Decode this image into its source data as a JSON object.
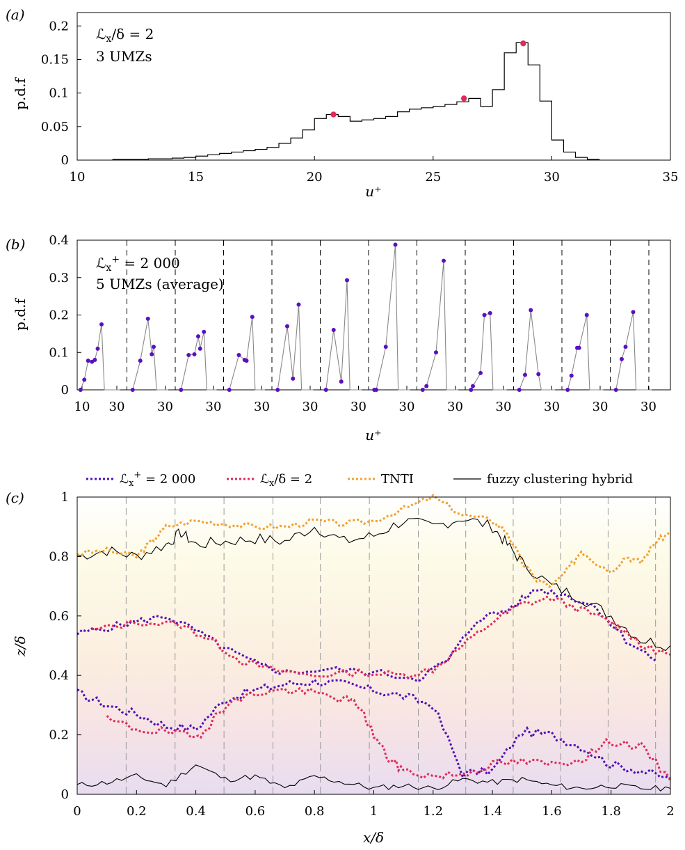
{
  "chart_data": [
    {
      "panel": "(a)",
      "type": "line",
      "xlabel": "u+",
      "ylabel": "p.d.f",
      "xlim": [
        10,
        35
      ],
      "ylim": [
        0,
        0.22
      ],
      "xticks": [
        "10",
        "15",
        "20",
        "25",
        "30",
        "35"
      ],
      "yticks": [
        "0",
        "0.05",
        "0.1",
        "0.15",
        "0.2"
      ],
      "annotations": [
        "L_x/δ = 2",
        "3 UMZs"
      ],
      "histogram": {
        "edges": [
          11.5,
          12,
          12.5,
          13,
          13.5,
          14,
          14.5,
          15,
          15.5,
          16,
          16.5,
          17,
          17.5,
          18,
          18.5,
          19,
          19.5,
          20,
          20.5,
          21,
          21.5,
          22,
          22.5,
          23,
          23.5,
          24,
          24.5,
          25,
          25.5,
          26,
          26.5,
          27,
          27.5,
          28,
          28.5,
          29,
          29.5,
          30,
          30.5,
          31,
          31.5,
          32
        ],
        "values": [
          0.001,
          0.001,
          0.001,
          0.002,
          0.002,
          0.003,
          0.004,
          0.006,
          0.008,
          0.01,
          0.012,
          0.014,
          0.016,
          0.019,
          0.025,
          0.033,
          0.045,
          0.062,
          0.068,
          0.065,
          0.058,
          0.06,
          0.062,
          0.065,
          0.072,
          0.076,
          0.078,
          0.08,
          0.083,
          0.087,
          0.092,
          0.08,
          0.105,
          0.16,
          0.175,
          0.142,
          0.088,
          0.03,
          0.012,
          0.004,
          0.001
        ]
      },
      "peaks": [
        [
          20.8,
          0.068
        ],
        [
          26.3,
          0.092
        ],
        [
          28.8,
          0.174
        ]
      ]
    },
    {
      "panel": "(b)",
      "type": "line",
      "xlabel": "u+",
      "ylabel": "p.d.f",
      "ylim": [
        0,
        0.4
      ],
      "yticks": [
        "0",
        "0.1",
        "0.2",
        "0.3",
        "0.4"
      ],
      "xtick_labels": [
        "10",
        "30",
        "30",
        "30",
        "30",
        "30",
        "30",
        "30",
        "30",
        "30",
        "30",
        "30",
        "30"
      ],
      "annotations": [
        "L_x+ = 2 000",
        "5 UMZs (average)"
      ],
      "segments": [
        {
          "peaks": [
            [
              11,
              0.0
            ],
            [
              13,
              0.027
            ],
            [
              15,
              0.078
            ],
            [
              17,
              0.075
            ],
            [
              18.5,
              0.08
            ],
            [
              20,
              0.11
            ],
            [
              22,
              0.175
            ]
          ]
        },
        {
          "peaks": [
            [
              13,
              0.0
            ],
            [
              17,
              0.078
            ],
            [
              21,
              0.19
            ],
            [
              23,
              0.095
            ],
            [
              24,
              0.115
            ]
          ]
        },
        {
          "peaks": [
            [
              13,
              0.0
            ],
            [
              17,
              0.093
            ],
            [
              20,
              0.095
            ],
            [
              22,
              0.143
            ],
            [
              23,
              0.11
            ],
            [
              25,
              0.155
            ]
          ]
        },
        {
          "peaks": [
            [
              13,
              0.0
            ],
            [
              18,
              0.093
            ],
            [
              21,
              0.08
            ],
            [
              22,
              0.078
            ],
            [
              25,
              0.195
            ]
          ]
        },
        {
          "peaks": [
            [
              13,
              0.0
            ],
            [
              18,
              0.17
            ],
            [
              21,
              0.03
            ],
            [
              24,
              0.228
            ]
          ]
        },
        {
          "peaks": [
            [
              13,
              0.0
            ],
            [
              17,
              0.16
            ],
            [
              21,
              0.022
            ],
            [
              24,
              0.293
            ]
          ]
        },
        {
          "peaks": [
            [
              13,
              0.0
            ],
            [
              14,
              0.0
            ],
            [
              19,
              0.115
            ],
            [
              24,
              0.388
            ]
          ]
        },
        {
          "peaks": [
            [
              13,
              0.0
            ],
            [
              15,
              0.01
            ],
            [
              20,
              0.1
            ],
            [
              24,
              0.345
            ]
          ]
        },
        {
          "peaks": [
            [
              13,
              0.0
            ],
            [
              14,
              0.01
            ],
            [
              18,
              0.045
            ],
            [
              20,
              0.2
            ],
            [
              23,
              0.205
            ]
          ]
        },
        {
          "peaks": [
            [
              13,
              0.0
            ],
            [
              16,
              0.04
            ],
            [
              19,
              0.213
            ],
            [
              23,
              0.042
            ]
          ]
        },
        {
          "peaks": [
            [
              13,
              0.0
            ],
            [
              15,
              0.038
            ],
            [
              18,
              0.112
            ],
            [
              19,
              0.112
            ],
            [
              23,
              0.2
            ]
          ]
        },
        {
          "peaks": [
            [
              13,
              0.0
            ],
            [
              16,
              0.082
            ],
            [
              18,
              0.115
            ],
            [
              22,
              0.208
            ]
          ]
        }
      ]
    },
    {
      "panel": "(c)",
      "type": "line",
      "xlabel": "x/δ",
      "ylabel": "z/δ",
      "xlim": [
        0,
        2
      ],
      "ylim": [
        0,
        1
      ],
      "xticks": [
        "0",
        "0.2",
        "0.4",
        "0.6",
        "0.8",
        "1",
        "1.2",
        "1.4",
        "1.6",
        "1.8",
        "2"
      ],
      "yticks": [
        "0",
        "0.2",
        "0.4",
        "0.6",
        "0.8",
        "1"
      ],
      "legend": [
        "L_x+ = 2 000",
        "L_x/δ = 2",
        "TNTI",
        "fuzzy clustering hybrid"
      ],
      "vlines": [
        0.165,
        0.33,
        0.495,
        0.66,
        0.82,
        0.985,
        1.15,
        1.31,
        1.47,
        1.63,
        1.79,
        1.95
      ],
      "tnti": [
        [
          0,
          0.81
        ],
        [
          0.1,
          0.82
        ],
        [
          0.2,
          0.8
        ],
        [
          0.25,
          0.85
        ],
        [
          0.3,
          0.9
        ],
        [
          0.4,
          0.92
        ],
        [
          0.5,
          0.91
        ],
        [
          0.6,
          0.9
        ],
        [
          0.7,
          0.9
        ],
        [
          0.8,
          0.92
        ],
        [
          0.9,
          0.91
        ],
        [
          1.0,
          0.92
        ],
        [
          1.1,
          0.96
        ],
        [
          1.2,
          1.0
        ],
        [
          1.3,
          0.94
        ],
        [
          1.4,
          0.92
        ],
        [
          1.45,
          0.88
        ],
        [
          1.5,
          0.78
        ],
        [
          1.55,
          0.72
        ],
        [
          1.6,
          0.7
        ],
        [
          1.65,
          0.75
        ],
        [
          1.7,
          0.82
        ],
        [
          1.75,
          0.78
        ],
        [
          1.8,
          0.75
        ],
        [
          1.85,
          0.8
        ],
        [
          1.9,
          0.78
        ],
        [
          1.95,
          0.85
        ],
        [
          2,
          0.88
        ]
      ],
      "lx_delta": [
        [
          0.05,
          0.55
        ],
        [
          0.2,
          0.58
        ],
        [
          0.35,
          0.57
        ],
        [
          0.45,
          0.52
        ],
        [
          0.55,
          0.45
        ],
        [
          0.65,
          0.42
        ],
        [
          0.8,
          0.4
        ],
        [
          0.95,
          0.41
        ],
        [
          1.1,
          0.4
        ],
        [
          1.2,
          0.42
        ],
        [
          1.3,
          0.5
        ],
        [
          1.4,
          0.58
        ],
        [
          1.5,
          0.64
        ],
        [
          1.6,
          0.66
        ],
        [
          1.7,
          0.62
        ],
        [
          1.8,
          0.58
        ],
        [
          1.85,
          0.55
        ],
        [
          1.9,
          0.5
        ],
        [
          2,
          0.47
        ]
      ],
      "lx_plus": [
        [
          0,
          0.54
        ],
        [
          0.1,
          0.56
        ],
        [
          0.2,
          0.58
        ],
        [
          0.3,
          0.6
        ],
        [
          0.4,
          0.55
        ],
        [
          0.5,
          0.49
        ],
        [
          0.6,
          0.44
        ],
        [
          0.7,
          0.41
        ],
        [
          0.85,
          0.42
        ],
        [
          1.0,
          0.41
        ],
        [
          1.15,
          0.39
        ],
        [
          1.25,
          0.45
        ],
        [
          1.35,
          0.59
        ],
        [
          1.45,
          0.62
        ],
        [
          1.55,
          0.69
        ],
        [
          1.65,
          0.67
        ],
        [
          1.75,
          0.63
        ],
        [
          1.85,
          0.52
        ],
        [
          1.95,
          0.45
        ]
      ],
      "lx_delta_low": [
        [
          0.1,
          0.25
        ],
        [
          0.2,
          0.22
        ],
        [
          0.3,
          0.21
        ],
        [
          0.4,
          0.19
        ],
        [
          0.45,
          0.24
        ],
        [
          0.5,
          0.3
        ],
        [
          0.6,
          0.34
        ],
        [
          0.7,
          0.35
        ],
        [
          0.8,
          0.34
        ],
        [
          0.9,
          0.32
        ],
        [
          0.95,
          0.3
        ],
        [
          1.0,
          0.2
        ],
        [
          1.05,
          0.12
        ],
        [
          1.1,
          0.08
        ],
        [
          1.2,
          0.06
        ],
        [
          1.3,
          0.07
        ],
        [
          1.4,
          0.1
        ],
        [
          1.5,
          0.11
        ],
        [
          1.6,
          0.1
        ],
        [
          1.7,
          0.12
        ],
        [
          1.8,
          0.18
        ],
        [
          1.9,
          0.16
        ],
        [
          2,
          0.05
        ]
      ],
      "lx_plus_low": [
        [
          0,
          0.34
        ],
        [
          0.1,
          0.3
        ],
        [
          0.2,
          0.27
        ],
        [
          0.3,
          0.23
        ],
        [
          0.4,
          0.22
        ],
        [
          0.5,
          0.32
        ],
        [
          0.6,
          0.35
        ],
        [
          0.7,
          0.37
        ],
        [
          0.8,
          0.38
        ],
        [
          0.9,
          0.37
        ],
        [
          1.0,
          0.35
        ],
        [
          1.1,
          0.33
        ],
        [
          1.2,
          0.3
        ],
        [
          1.3,
          0.07
        ],
        [
          1.4,
          0.08
        ],
        [
          1.5,
          0.21
        ],
        [
          1.6,
          0.2
        ],
        [
          1.7,
          0.16
        ],
        [
          1.8,
          0.1
        ],
        [
          1.9,
          0.08
        ],
        [
          2,
          0.05
        ]
      ],
      "fuzzy": [
        [
          0,
          0.8
        ],
        [
          0.1,
          0.82
        ],
        [
          0.2,
          0.8
        ],
        [
          0.3,
          0.84
        ],
        [
          0.35,
          0.88
        ],
        [
          0.4,
          0.84
        ],
        [
          0.5,
          0.85
        ],
        [
          0.6,
          0.86
        ],
        [
          0.7,
          0.85
        ],
        [
          0.8,
          0.9
        ],
        [
          0.9,
          0.85
        ],
        [
          1.0,
          0.87
        ],
        [
          1.1,
          0.92
        ],
        [
          1.2,
          0.9
        ],
        [
          1.3,
          0.93
        ],
        [
          1.4,
          0.9
        ],
        [
          1.45,
          0.84
        ],
        [
          1.5,
          0.78
        ],
        [
          1.6,
          0.7
        ],
        [
          1.7,
          0.66
        ],
        [
          1.8,
          0.6
        ],
        [
          1.9,
          0.52
        ],
        [
          2,
          0.5
        ]
      ],
      "fuzzy_low": [
        [
          0,
          0.03
        ],
        [
          0.1,
          0.04
        ],
        [
          0.2,
          0.06
        ],
        [
          0.3,
          0.03
        ],
        [
          0.4,
          0.1
        ],
        [
          0.5,
          0.05
        ],
        [
          0.6,
          0.06
        ],
        [
          0.7,
          0.02
        ],
        [
          0.8,
          0.06
        ],
        [
          0.9,
          0.04
        ],
        [
          1.0,
          0.02
        ],
        [
          1.1,
          0.03
        ],
        [
          1.2,
          0.02
        ],
        [
          1.3,
          0.05
        ],
        [
          1.4,
          0.04
        ],
        [
          1.5,
          0.05
        ],
        [
          1.6,
          0.03
        ],
        [
          1.7,
          0.02
        ],
        [
          1.8,
          0.03
        ],
        [
          1.9,
          0.02
        ],
        [
          2,
          0.02
        ]
      ]
    }
  ],
  "colors": {
    "plus": "#5010b8",
    "delta": "#e02a5a",
    "tnti": "#f0a030",
    "fuzzy": "#000000",
    "marker_a": "#e02a5a",
    "marker_b": "#5a10c0"
  }
}
